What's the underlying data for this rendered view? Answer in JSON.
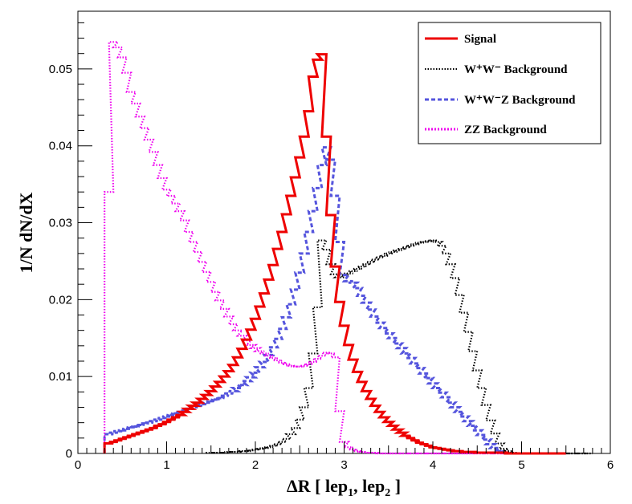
{
  "chart_data": {
    "type": "histogram",
    "title": "",
    "xlabel": {
      "prefix": "ΔR [ lep",
      "sub1": "1",
      "mid": ", lep",
      "sub2": "2",
      "suffix": " ]"
    },
    "ylabel": "1/N dN/dX",
    "xlim": [
      0,
      6
    ],
    "ylim": [
      0,
      0.0575
    ],
    "xticks": [
      0,
      1,
      2,
      3,
      4,
      5,
      6
    ],
    "xtick_labels": [
      "0",
      "1",
      "2",
      "3",
      "4",
      "5",
      "6"
    ],
    "yticks": [
      0,
      0.01,
      0.02,
      0.03,
      0.04,
      0.05
    ],
    "ytick_labels": [
      "0",
      "0.01",
      "0.02",
      "0.03",
      "0.04",
      "0.05"
    ],
    "bin_width": 0.1,
    "legend": {
      "position": "top-right",
      "entries": [
        {
          "key": "signal",
          "label": "Signal"
        },
        {
          "key": "ww",
          "label": "W⁺W⁻ Background"
        },
        {
          "key": "wwz",
          "label": "W⁺W⁻Z Background"
        },
        {
          "key": "zz",
          "label": "ZZ Background"
        }
      ]
    },
    "series": [
      {
        "key": "signal",
        "name": "Signal",
        "color": "#ee0000",
        "style": "solid",
        "x": [
          0.35,
          0.4,
          0.45,
          0.5,
          0.55,
          0.6,
          0.65,
          0.7,
          0.75,
          0.8,
          0.85,
          0.9,
          0.95,
          1.0,
          1.05,
          1.1,
          1.15,
          1.2,
          1.25,
          1.3,
          1.35,
          1.4,
          1.45,
          1.5,
          1.55,
          1.6,
          1.65,
          1.7,
          1.75,
          1.8,
          1.85,
          1.9,
          1.95,
          2.0,
          2.05,
          2.1,
          2.15,
          2.2,
          2.25,
          2.3,
          2.35,
          2.4,
          2.45,
          2.5,
          2.55,
          2.6,
          2.65,
          2.7,
          2.75,
          2.8,
          2.85,
          2.9,
          2.95,
          3.0,
          3.05,
          3.1,
          3.15,
          3.2,
          3.25,
          3.3,
          3.35,
          3.4,
          3.45,
          3.5,
          3.55,
          3.6,
          3.65,
          3.7,
          3.75,
          3.8,
          3.85,
          3.9,
          3.95,
          4.0,
          4.05,
          4.1,
          4.15,
          4.2,
          4.25,
          4.3,
          4.35,
          4.4,
          4.45,
          4.5,
          4.55,
          4.6,
          4.65,
          4.7,
          4.75,
          4.8,
          4.85,
          4.9,
          4.95,
          5.0,
          5.05,
          5.1,
          5.15,
          5.2,
          5.25,
          5.3,
          5.35,
          5.4,
          5.45,
          5.5
        ],
        "y": [
          0.0013,
          0.0015,
          0.0017,
          0.0019,
          0.0021,
          0.0023,
          0.0025,
          0.0027,
          0.0029,
          0.0031,
          0.0033,
          0.0036,
          0.0038,
          0.0041,
          0.0044,
          0.0047,
          0.005,
          0.0054,
          0.0058,
          0.0062,
          0.0066,
          0.0071,
          0.0076,
          0.0081,
          0.0087,
          0.0093,
          0.01,
          0.0107,
          0.0115,
          0.0125,
          0.0136,
          0.0148,
          0.0161,
          0.0175,
          0.0191,
          0.0208,
          0.0226,
          0.0245,
          0.0266,
          0.0288,
          0.0311,
          0.0335,
          0.0359,
          0.0385,
          0.0412,
          0.0445,
          0.049,
          0.0512,
          0.0519,
          0.0412,
          0.031,
          0.0243,
          0.0197,
          0.0166,
          0.0141,
          0.0122,
          0.0106,
          0.0093,
          0.0081,
          0.0071,
          0.0062,
          0.0054,
          0.0047,
          0.0041,
          0.0036,
          0.0031,
          0.0027,
          0.0023,
          0.002,
          0.0017,
          0.0014,
          0.0012,
          0.001,
          0.0008,
          0.0007,
          0.0006,
          0.0005,
          0.0004,
          0.0003,
          0.0003,
          0.0002,
          0.0002,
          0.0002,
          0.0001,
          0.0001,
          0.0001,
          0.0001,
          0.0001,
          0.0001,
          0.0001,
          0.0,
          0.0,
          0.0,
          0.0,
          0.0,
          0.0,
          0.0,
          0.0,
          0.0,
          0.0,
          0.0,
          0.0,
          0.0
        ]
      },
      {
        "key": "ww",
        "name": "W⁺W⁻ Background",
        "color": "#000000",
        "style": "dotted",
        "x": [
          1.5,
          1.55,
          1.6,
          1.65,
          1.7,
          1.75,
          1.8,
          1.85,
          1.9,
          1.95,
          2.0,
          2.05,
          2.1,
          2.15,
          2.2,
          2.25,
          2.3,
          2.35,
          2.4,
          2.45,
          2.5,
          2.55,
          2.6,
          2.65,
          2.7,
          2.75,
          2.8,
          2.85,
          2.9,
          2.95,
          3.0,
          3.05,
          3.1,
          3.15,
          3.2,
          3.25,
          3.3,
          3.35,
          3.4,
          3.45,
          3.5,
          3.55,
          3.6,
          3.65,
          3.7,
          3.75,
          3.8,
          3.85,
          3.9,
          3.95,
          4.0,
          4.05,
          4.1,
          4.15,
          4.2,
          4.25,
          4.3,
          4.35,
          4.4,
          4.45,
          4.5,
          4.55,
          4.6,
          4.65,
          4.7,
          4.75,
          4.8,
          4.85,
          4.9,
          4.95,
          5.0,
          5.05,
          5.1,
          5.15,
          5.2,
          5.25,
          5.3,
          5.35,
          5.4,
          5.45,
          5.5,
          5.55,
          5.6,
          5.65,
          5.7,
          5.75
        ],
        "y": [
          0.0001,
          0.0001,
          0.0001,
          0.0001,
          0.0002,
          0.0002,
          0.0002,
          0.0003,
          0.0003,
          0.0004,
          0.0005,
          0.0006,
          0.0007,
          0.0008,
          0.001,
          0.0012,
          0.0015,
          0.0019,
          0.0025,
          0.0033,
          0.0044,
          0.006,
          0.0085,
          0.013,
          0.019,
          0.0277,
          0.0265,
          0.0246,
          0.0233,
          0.0229,
          0.0232,
          0.0234,
          0.0237,
          0.024,
          0.0243,
          0.0246,
          0.0249,
          0.0252,
          0.0255,
          0.0257,
          0.026,
          0.0262,
          0.0264,
          0.0266,
          0.0268,
          0.027,
          0.0272,
          0.0274,
          0.0275,
          0.0276,
          0.0277,
          0.0275,
          0.027,
          0.026,
          0.0246,
          0.0228,
          0.0206,
          0.0183,
          0.0158,
          0.0133,
          0.0108,
          0.0085,
          0.0063,
          0.0043,
          0.0026,
          0.0013,
          0.0006,
          0.0003,
          0.0001,
          0.0,
          0.0,
          0.0,
          0.0,
          0.0,
          0.0,
          0.0,
          0.0,
          0.0,
          0.0,
          0.0,
          0.0,
          0.0,
          0.0,
          0.0,
          0.0,
          0.0
        ]
      },
      {
        "key": "wwz",
        "name": "W⁺W⁻Z Background",
        "color": "#5555dd",
        "style": "dashed",
        "x": [
          0.35,
          0.4,
          0.45,
          0.5,
          0.55,
          0.6,
          0.65,
          0.7,
          0.75,
          0.8,
          0.85,
          0.9,
          0.95,
          1.0,
          1.05,
          1.1,
          1.15,
          1.2,
          1.25,
          1.3,
          1.35,
          1.4,
          1.45,
          1.5,
          1.55,
          1.6,
          1.65,
          1.7,
          1.75,
          1.8,
          1.85,
          1.9,
          1.95,
          2.0,
          2.05,
          2.1,
          2.15,
          2.2,
          2.25,
          2.3,
          2.35,
          2.4,
          2.45,
          2.5,
          2.55,
          2.6,
          2.65,
          2.7,
          2.75,
          2.8,
          2.85,
          2.9,
          2.95,
          3.0,
          3.05,
          3.1,
          3.15,
          3.2,
          3.25,
          3.3,
          3.35,
          3.4,
          3.45,
          3.5,
          3.55,
          3.6,
          3.65,
          3.7,
          3.75,
          3.8,
          3.85,
          3.9,
          3.95,
          4.0,
          4.05,
          4.1,
          4.15,
          4.2,
          4.25,
          4.3,
          4.35,
          4.4,
          4.45,
          4.5,
          4.55,
          4.6,
          4.65,
          4.7,
          4.75,
          4.8,
          4.85,
          4.9,
          4.95,
          5.0,
          5.05,
          5.1,
          5.15,
          5.2,
          5.25,
          5.3,
          5.35,
          5.4,
          5.45,
          5.5
        ],
        "y": [
          0.0025,
          0.0027,
          0.0029,
          0.003,
          0.0032,
          0.0034,
          0.0035,
          0.0037,
          0.0039,
          0.004,
          0.0042,
          0.0044,
          0.0046,
          0.0048,
          0.005,
          0.0052,
          0.0054,
          0.0056,
          0.0058,
          0.006,
          0.0062,
          0.0064,
          0.0066,
          0.0068,
          0.007,
          0.0072,
          0.0075,
          0.0078,
          0.0081,
          0.0085,
          0.0089,
          0.0094,
          0.0099,
          0.0105,
          0.0112,
          0.0119,
          0.0128,
          0.0138,
          0.0149,
          0.0162,
          0.0177,
          0.0194,
          0.0213,
          0.0235,
          0.026,
          0.0288,
          0.0315,
          0.0345,
          0.0375,
          0.0398,
          0.0382,
          0.0335,
          0.0275,
          0.0232,
          0.0224,
          0.0222,
          0.0215,
          0.0205,
          0.0196,
          0.0187,
          0.0178,
          0.017,
          0.0163,
          0.0156,
          0.015,
          0.0143,
          0.0137,
          0.013,
          0.0124,
          0.0117,
          0.0111,
          0.0104,
          0.0098,
          0.0091,
          0.0085,
          0.0079,
          0.0073,
          0.0066,
          0.006,
          0.0054,
          0.0048,
          0.0042,
          0.0036,
          0.003,
          0.0024,
          0.0018,
          0.0012,
          0.0007,
          0.0003,
          0.0001,
          0.0,
          0.0,
          0.0,
          0.0,
          0.0,
          0.0,
          0.0,
          0.0,
          0.0,
          0.0,
          0.0,
          0.0,
          0.0
        ]
      },
      {
        "key": "zz",
        "name": "ZZ Background",
        "color": "#ee00ee",
        "style": "dotted",
        "x": [
          0.35,
          0.4,
          0.45,
          0.5,
          0.55,
          0.6,
          0.65,
          0.7,
          0.75,
          0.8,
          0.85,
          0.9,
          0.95,
          1.0,
          1.05,
          1.1,
          1.15,
          1.2,
          1.25,
          1.3,
          1.35,
          1.4,
          1.45,
          1.5,
          1.55,
          1.6,
          1.65,
          1.7,
          1.75,
          1.8,
          1.85,
          1.9,
          1.95,
          2.0,
          2.05,
          2.1,
          2.15,
          2.2,
          2.25,
          2.3,
          2.35,
          2.4,
          2.45,
          2.5,
          2.55,
          2.6,
          2.65,
          2.7,
          2.75,
          2.8,
          2.85,
          2.9,
          2.95,
          3.0,
          3.05,
          3.1,
          3.15,
          3.2,
          3.25,
          3.3,
          3.35,
          3.4,
          3.45,
          3.5,
          3.55,
          3.6,
          3.65,
          3.7,
          3.75,
          3.8,
          3.85,
          3.9,
          3.95,
          4.0,
          4.05,
          4.1,
          4.15,
          4.2,
          4.25,
          4.3,
          4.35,
          4.4,
          4.45,
          4.5,
          4.55,
          4.6,
          4.65,
          4.7,
          4.75,
          4.8,
          4.85,
          4.9,
          4.95,
          5.0,
          5.05,
          5.1,
          5.15,
          5.2,
          5.25,
          5.3,
          5.35,
          5.4,
          5.45,
          5.5
        ],
        "y": [
          0.034,
          0.0535,
          0.0528,
          0.0515,
          0.0495,
          0.047,
          0.0455,
          0.0438,
          0.0423,
          0.0408,
          0.0392,
          0.0375,
          0.0358,
          0.0343,
          0.0335,
          0.0325,
          0.0315,
          0.0303,
          0.0288,
          0.0275,
          0.0262,
          0.0249,
          0.0236,
          0.0223,
          0.021,
          0.0199,
          0.0188,
          0.0178,
          0.0168,
          0.016,
          0.0153,
          0.0147,
          0.0141,
          0.0137,
          0.0133,
          0.013,
          0.0127,
          0.0124,
          0.0121,
          0.0118,
          0.0116,
          0.0114,
          0.0113,
          0.0113,
          0.0114,
          0.0116,
          0.0119,
          0.0123,
          0.0127,
          0.0131,
          0.013,
          0.0125,
          0.0055,
          0.0015,
          0.0008,
          0.0005,
          0.0003,
          0.0002,
          0.0001,
          0.0001,
          0.0001,
          0.0,
          0.0,
          0.0,
          0.0,
          0.0,
          0.0,
          0.0,
          0.0,
          0.0,
          0.0,
          0.0,
          0.0,
          0.0,
          0.0,
          0.0,
          0.0,
          0.0,
          0.0,
          0.0,
          0.0,
          0.0,
          0.0,
          0.0,
          0.0,
          0.0,
          0.0,
          0.0,
          0.0,
          0.0,
          0.0,
          0.0,
          0.0,
          0.0,
          0.0,
          0.0,
          0.0,
          0.0,
          0.0,
          0.0,
          0.0,
          0.0,
          0.0
        ]
      }
    ]
  }
}
